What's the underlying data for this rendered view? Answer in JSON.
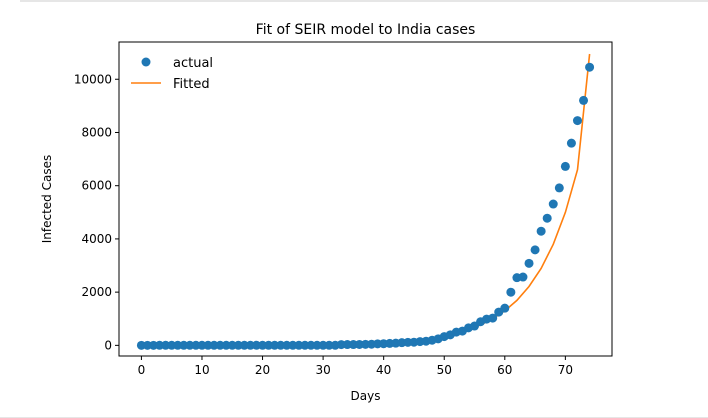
{
  "chart_data": {
    "type": "scatter",
    "title": "Fit of SEIR model to India cases",
    "xlabel": "Days",
    "ylabel": "Infected Cases",
    "xlim": [
      -3.7,
      77.7
    ],
    "ylim": [
      -400,
      11400
    ],
    "xticks": [
      0,
      10,
      20,
      30,
      40,
      50,
      60,
      70
    ],
    "yticks": [
      0,
      2000,
      4000,
      6000,
      8000,
      10000
    ],
    "grid": false,
    "legend_position": "top-left",
    "colors": {
      "actual": "#1f77b4",
      "fitted": "#ff7f0e"
    },
    "series": [
      {
        "name": "actual",
        "kind": "scatter",
        "x": [
          0,
          1,
          2,
          3,
          4,
          5,
          6,
          7,
          8,
          9,
          10,
          11,
          12,
          13,
          14,
          15,
          16,
          17,
          18,
          19,
          20,
          21,
          22,
          23,
          24,
          25,
          26,
          27,
          28,
          29,
          30,
          31,
          32,
          33,
          34,
          35,
          36,
          37,
          38,
          39,
          40,
          41,
          42,
          43,
          44,
          45,
          46,
          47,
          48,
          49,
          50,
          51,
          52,
          53,
          54,
          55,
          56,
          57,
          58,
          59,
          60,
          61,
          62,
          63,
          64,
          65,
          66,
          67,
          68,
          69,
          70,
          71,
          72,
          73,
          74
        ],
        "y": [
          1,
          1,
          1,
          2,
          3,
          3,
          3,
          3,
          3,
          3,
          3,
          3,
          3,
          3,
          3,
          3,
          3,
          3,
          3,
          3,
          3,
          3,
          3,
          3,
          3,
          3,
          3,
          3,
          3,
          3,
          3,
          3,
          3,
          28,
          30,
          31,
          34,
          39,
          43,
          56,
          62,
          73,
          82,
          102,
          113,
          119,
          142,
          156,
          194,
          244,
          330,
          396,
          499,
          536,
          657,
          727,
          887,
          987,
          1024,
          1251,
          1397,
          1998,
          2543,
          2567,
          3082,
          3588,
          4289,
          4778,
          5311,
          5916,
          6725,
          7598,
          8446,
          9205,
          10453
        ]
      },
      {
        "name": "Fitted",
        "kind": "line",
        "x": [
          0,
          5,
          10,
          15,
          20,
          25,
          30,
          35,
          40,
          42,
          44,
          46,
          48,
          50,
          52,
          54,
          56,
          58,
          60,
          62,
          64,
          66,
          68,
          70,
          72,
          74
        ],
        "y": [
          0,
          1,
          3,
          6,
          11,
          19,
          33,
          57,
          100,
          128,
          165,
          213,
          275,
          355,
          460,
          595,
          770,
          1000,
          1300,
          1690,
          2210,
          2890,
          3800,
          5000,
          6600,
          10950
        ]
      }
    ]
  }
}
